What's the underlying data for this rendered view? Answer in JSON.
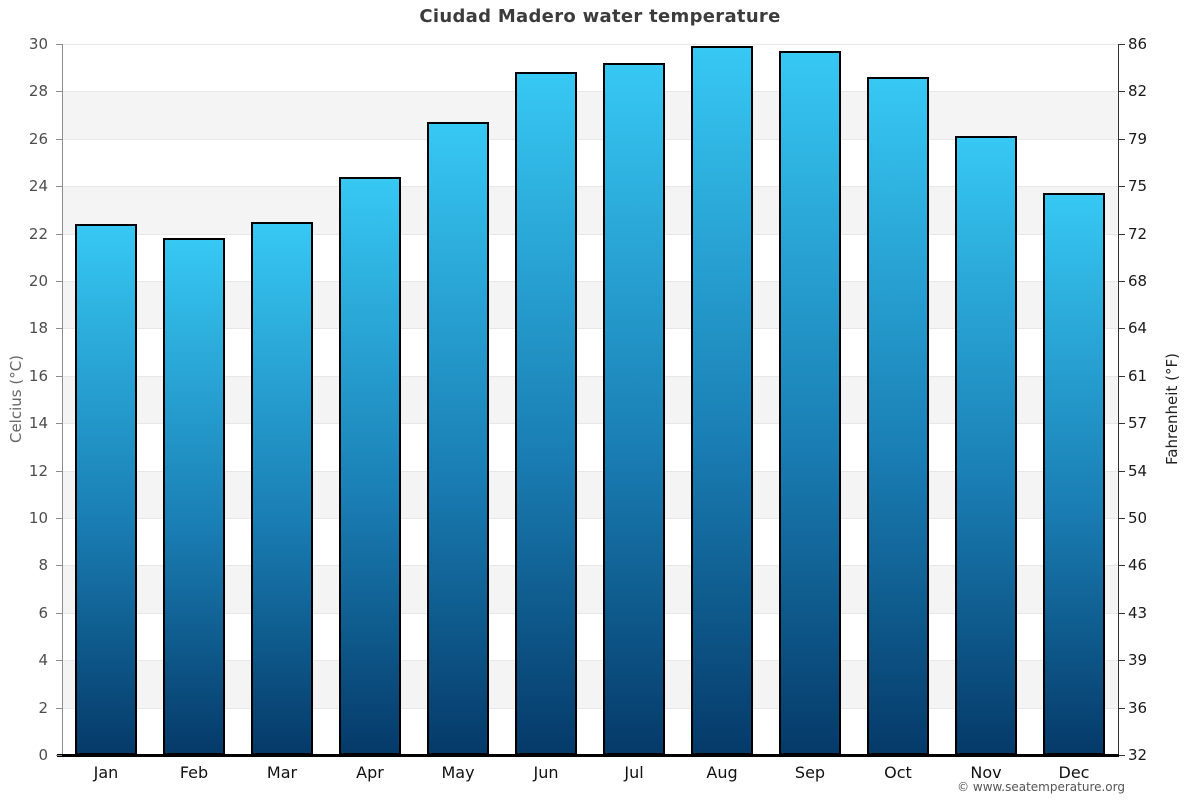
{
  "title": "Ciudad Madero water temperature",
  "watermark": "© www.seatemperature.org",
  "chart_data": {
    "type": "bar",
    "title": "Ciudad Madero water temperature",
    "categories": [
      "Jan",
      "Feb",
      "Mar",
      "Apr",
      "May",
      "Jun",
      "Jul",
      "Aug",
      "Sep",
      "Oct",
      "Nov",
      "Dec"
    ],
    "values": [
      22.4,
      21.8,
      22.5,
      24.4,
      26.7,
      28.8,
      29.2,
      29.9,
      29.7,
      28.6,
      26.1,
      23.7
    ],
    "series_name": "water temperature",
    "xlabel": "",
    "ylabel_left": "Celcius (°C)",
    "ylabel_right": "Fahrenheit (°F)",
    "ylim": [
      0,
      30
    ],
    "celsius_tick_labels_top_to_bottom": [
      "30",
      "28",
      "26",
      "24",
      "22",
      "20",
      "18",
      "16",
      "14",
      "12",
      "10",
      "8",
      "6",
      "4",
      "2",
      "0"
    ],
    "fahrenheit_tick_labels_top_to_bottom": [
      "86",
      "82",
      "79",
      "75",
      "72",
      "68",
      "64",
      "61",
      "57",
      "54",
      "50",
      "46",
      "43",
      "39",
      "36",
      "32"
    ],
    "grid": "alternating horizontal bands every 2°C",
    "legend": false,
    "colors": {
      "bar_gradient_top": "#37c8f3",
      "bar_gradient_bottom": "#053a69",
      "bar_border": "#000000",
      "band_light": "#ffffff",
      "band_gray": "#f4f4f4",
      "gridline": "#e7e7e7",
      "title_text": "#3c3c3c",
      "axis_bottom": "#000000"
    }
  }
}
